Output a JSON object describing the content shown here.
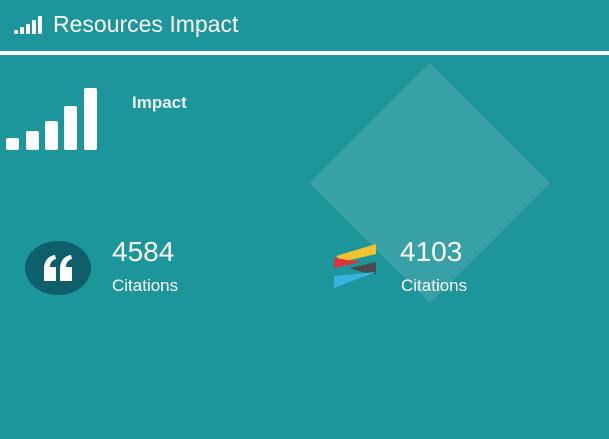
{
  "header": {
    "title": "Resources Impact",
    "icon": "signal-bars-icon"
  },
  "panel": {
    "impact_label": "Impact",
    "impact_icon": "signal-bars-icon"
  },
  "metrics": [
    {
      "value": "4584",
      "label": "Citations",
      "icon": "quote-icon"
    },
    {
      "value": "4103",
      "label": "Citations",
      "icon": "source-logo-icon"
    }
  ],
  "colors": {
    "background": "#1c959b",
    "badge": "#0e5f69",
    "logo_yellow": "#f2c230",
    "logo_red": "#e0323b",
    "logo_dark": "#4a4a4a",
    "logo_blue": "#3bb2e0"
  }
}
